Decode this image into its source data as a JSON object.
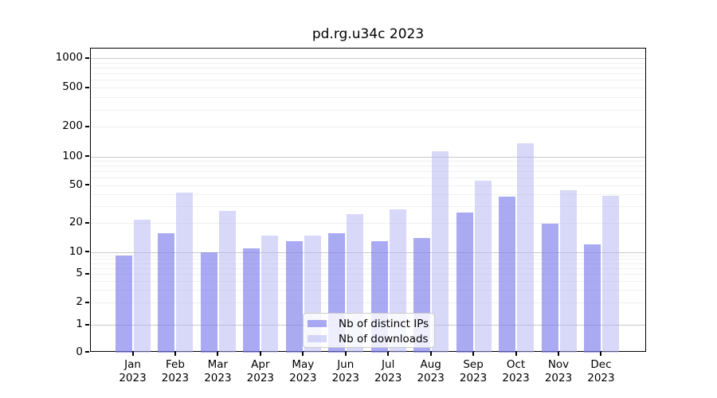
{
  "title": "pd.rg.u34c 2023",
  "chart_data": {
    "type": "bar",
    "title": "pd.rg.u34c 2023",
    "year": "2023",
    "months": [
      "Jan",
      "Feb",
      "Mar",
      "Apr",
      "May",
      "Jun",
      "Jul",
      "Aug",
      "Sep",
      "Oct",
      "Nov",
      "Dec"
    ],
    "series": [
      {
        "name": "Nb of distinct IPs",
        "color": "rgba(124,124,235,0.65)",
        "values": [
          9,
          16,
          10,
          11,
          13,
          16,
          13,
          14,
          26,
          38,
          20,
          12
        ]
      },
      {
        "name": "Nb of downloads",
        "color": "rgba(177,177,241,0.5)",
        "values": [
          22,
          42,
          27,
          15,
          15,
          25,
          28,
          115,
          56,
          137,
          45,
          39
        ]
      }
    ],
    "yscale": "log-with-zero-baseline",
    "yticks": [
      0,
      1,
      2,
      5,
      10,
      20,
      50,
      100,
      200,
      500,
      1000
    ],
    "ylim": [
      0,
      1400
    ],
    "grid": "major and minor horizontal gridlines",
    "legend_position": "lower center inside plot"
  },
  "colors": {
    "bar_ips": "rgba(124,124,235,0.65)",
    "bar_downloads": "rgba(177,177,241,0.5)",
    "grid_major": "#c9c9c9",
    "grid_minor": "#f0f0f0",
    "spine": "#000000",
    "background": "#ffffff"
  }
}
